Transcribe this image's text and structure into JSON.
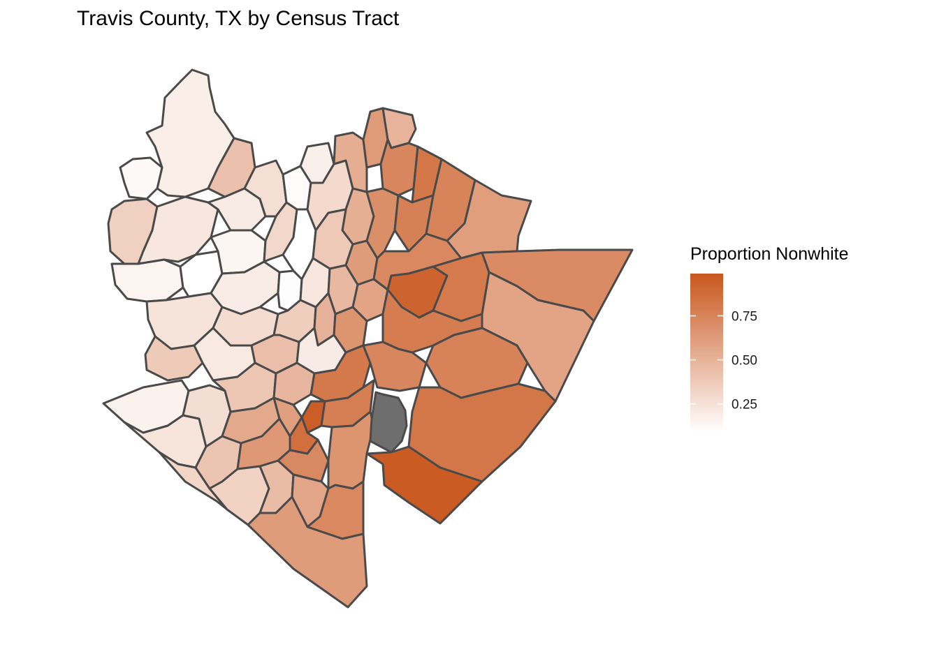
{
  "title": "Travis County, TX by Census Tract",
  "legend": {
    "title": "Proportion Nonwhite",
    "ticks": [
      {
        "value": 0.75,
        "label": "0.75"
      },
      {
        "value": 0.5,
        "label": "0.50"
      },
      {
        "value": 0.25,
        "label": "0.25"
      }
    ],
    "range": [
      0.09,
      0.99
    ],
    "low_color": "#ffffff",
    "high_color": "#c9571e"
  },
  "na_color": "#6e6e6e",
  "border_color": "#4a4a4a"
}
